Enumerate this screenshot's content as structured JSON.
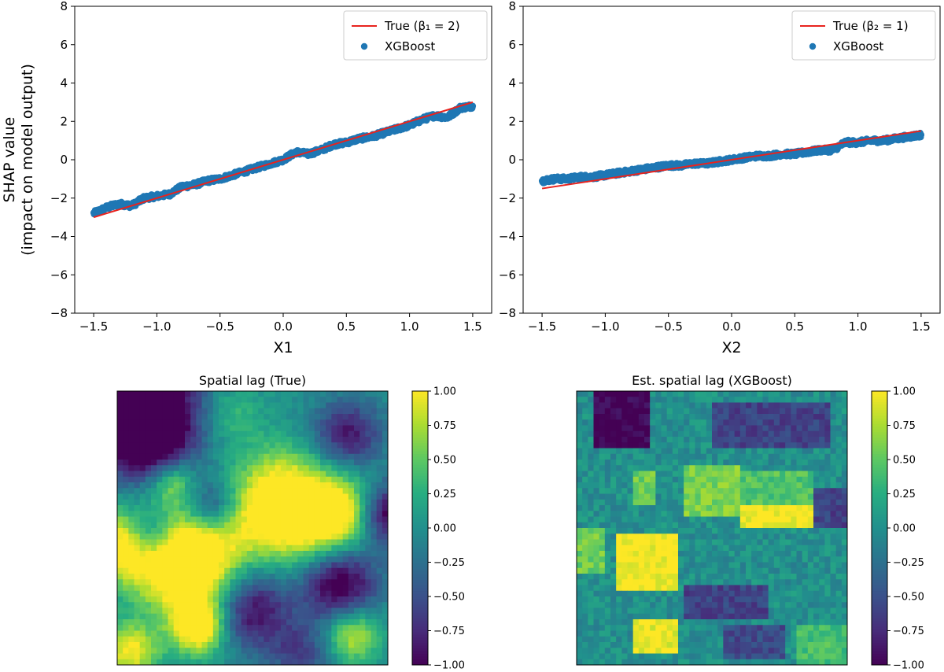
{
  "chart_data": [
    {
      "type": "scatter",
      "title": "",
      "xlabel": "X1",
      "ylabel": [
        "SHAP value",
        "(impact on model output)"
      ],
      "xlim": [
        -1.65,
        1.65
      ],
      "ylim": [
        -8,
        8
      ],
      "xticks": [
        -1.5,
        -1.0,
        -0.5,
        0.0,
        0.5,
        1.0,
        1.5
      ],
      "xtick_labels": [
        "−1.5",
        "−1.0",
        "−0.5",
        "0.0",
        "0.5",
        "1.0",
        "1.5"
      ],
      "yticks": [
        -8,
        -6,
        -4,
        -2,
        0,
        2,
        4,
        6,
        8
      ],
      "ytick_labels": [
        "−8",
        "−6",
        "−4",
        "−2",
        "0",
        "2",
        "4",
        "6",
        "8"
      ],
      "legend_position": "top-right",
      "series": [
        {
          "name": "True (β₁ = 2)",
          "kind": "line",
          "color": "#e8231e",
          "x": [
            -1.5,
            1.5
          ],
          "y": [
            -3.0,
            3.0
          ]
        },
        {
          "name": "XGBoost",
          "kind": "scatter",
          "color": "#1f77b4",
          "x": [
            -1.5,
            -1.4,
            -1.3,
            -1.2,
            -1.1,
            -1.0,
            -0.9,
            -0.8,
            -0.7,
            -0.6,
            -0.5,
            -0.4,
            -0.3,
            -0.2,
            -0.1,
            0.0,
            0.1,
            0.2,
            0.3,
            0.4,
            0.5,
            0.6,
            0.7,
            0.8,
            0.9,
            1.0,
            1.1,
            1.2,
            1.3,
            1.4,
            1.5
          ],
          "y": [
            -2.8,
            -2.5,
            -2.3,
            -2.4,
            -2.0,
            -1.9,
            -1.8,
            -1.4,
            -1.3,
            -1.1,
            -1.0,
            -0.8,
            -0.6,
            -0.4,
            -0.2,
            0.0,
            0.4,
            0.3,
            0.5,
            0.8,
            0.9,
            1.1,
            1.2,
            1.4,
            1.6,
            1.8,
            2.1,
            2.3,
            2.2,
            2.7,
            2.8
          ]
        }
      ]
    },
    {
      "type": "scatter",
      "title": "",
      "xlabel": "X2",
      "ylabel": "",
      "xlim": [
        -1.65,
        1.65
      ],
      "ylim": [
        -8,
        8
      ],
      "xticks": [
        -1.5,
        -1.0,
        -0.5,
        0.0,
        0.5,
        1.0,
        1.5
      ],
      "xtick_labels": [
        "−1.5",
        "−1.0",
        "−0.5",
        "0.0",
        "0.5",
        "1.0",
        "1.5"
      ],
      "yticks": [
        -8,
        -6,
        -4,
        -2,
        0,
        2,
        4,
        6,
        8
      ],
      "ytick_labels": [
        "−8",
        "−6",
        "−4",
        "−2",
        "0",
        "2",
        "4",
        "6",
        "8"
      ],
      "legend_position": "top-right",
      "series": [
        {
          "name": "True (β₂ = 1)",
          "kind": "line",
          "color": "#e8231e",
          "x": [
            -1.5,
            1.5
          ],
          "y": [
            -1.5,
            1.5
          ]
        },
        {
          "name": "XGBoost",
          "kind": "scatter",
          "color": "#1f77b4",
          "x": [
            -1.5,
            -1.4,
            -1.3,
            -1.2,
            -1.1,
            -1.0,
            -0.9,
            -0.8,
            -0.7,
            -0.6,
            -0.5,
            -0.4,
            -0.3,
            -0.2,
            -0.1,
            0.0,
            0.1,
            0.2,
            0.3,
            0.4,
            0.5,
            0.6,
            0.7,
            0.8,
            0.9,
            1.0,
            1.1,
            1.2,
            1.3,
            1.4,
            1.5
          ],
          "y": [
            -1.1,
            -1.0,
            -1.0,
            -0.9,
            -0.9,
            -0.8,
            -0.7,
            -0.6,
            -0.5,
            -0.4,
            -0.3,
            -0.3,
            -0.2,
            -0.2,
            -0.1,
            0.0,
            0.1,
            0.2,
            0.2,
            0.3,
            0.3,
            0.4,
            0.5,
            0.5,
            0.9,
            0.9,
            1.0,
            1.0,
            1.1,
            1.2,
            1.3
          ]
        }
      ]
    },
    {
      "type": "heatmap",
      "title": "Spatial lag (True)",
      "vmin": -1.0,
      "vmax": 1.0,
      "colormap": "viridis",
      "colorbar_ticks": [
        "1.00",
        "0.75",
        "0.50",
        "0.25",
        "0.00",
        "−0.25",
        "−0.50",
        "−0.75",
        "−1.00"
      ],
      "blobs": [
        {
          "cx": 0.08,
          "cy": 0.05,
          "r": 0.16,
          "v": -1.5
        },
        {
          "cx": 0.12,
          "cy": 0.18,
          "r": 0.1,
          "v": -0.8
        },
        {
          "cx": 0.42,
          "cy": 0.08,
          "r": 0.08,
          "v": 0.4
        },
        {
          "cx": 0.85,
          "cy": 0.16,
          "r": 0.09,
          "v": -0.9
        },
        {
          "cx": 0.62,
          "cy": 0.3,
          "r": 0.09,
          "v": 0.2
        },
        {
          "cx": 0.2,
          "cy": 0.33,
          "r": 0.06,
          "v": 0.7
        },
        {
          "cx": 0.6,
          "cy": 0.45,
          "r": 0.14,
          "v": 1.4
        },
        {
          "cx": 0.82,
          "cy": 0.45,
          "r": 0.1,
          "v": 1.1
        },
        {
          "cx": 0.35,
          "cy": 0.42,
          "r": 0.07,
          "v": -0.8
        },
        {
          "cx": 0.12,
          "cy": 0.53,
          "r": 0.07,
          "v": -0.9
        },
        {
          "cx": 1.0,
          "cy": 0.45,
          "r": 0.08,
          "v": -1.2
        },
        {
          "cx": 0.25,
          "cy": 0.62,
          "r": 0.13,
          "v": 1.7
        },
        {
          "cx": 0.02,
          "cy": 0.56,
          "r": 0.09,
          "v": 1.1
        },
        {
          "cx": 0.55,
          "cy": 0.63,
          "r": 0.08,
          "v": -0.2
        },
        {
          "cx": 0.82,
          "cy": 0.7,
          "r": 0.1,
          "v": -1.2
        },
        {
          "cx": 0.5,
          "cy": 0.8,
          "r": 0.1,
          "v": -1.0
        },
        {
          "cx": 0.3,
          "cy": 0.86,
          "r": 0.07,
          "v": 1.3
        },
        {
          "cx": 0.87,
          "cy": 0.89,
          "r": 0.07,
          "v": 0.9
        },
        {
          "cx": 0.05,
          "cy": 0.95,
          "r": 0.07,
          "v": 1.0
        },
        {
          "cx": 0.68,
          "cy": 0.96,
          "r": 0.08,
          "v": -0.6
        }
      ]
    },
    {
      "type": "heatmap",
      "title": "Est. spatial lag (XGBoost)",
      "vmin": -1.0,
      "vmax": 1.0,
      "colormap": "viridis",
      "colorbar_ticks": [
        "1.00",
        "0.75",
        "0.50",
        "0.25",
        "0.00",
        "−0.25",
        "−0.50",
        "−0.75",
        "−1.00"
      ],
      "rects": [
        {
          "x0": 0.06,
          "y0": 0.0,
          "x1": 0.27,
          "y1": 0.2,
          "v": -1.0
        },
        {
          "x0": 0.5,
          "y0": 0.04,
          "x1": 0.93,
          "y1": 0.2,
          "v": -0.6
        },
        {
          "x0": 0.4,
          "y0": 0.27,
          "x1": 0.6,
          "y1": 0.45,
          "v": 0.6
        },
        {
          "x0": 0.6,
          "y0": 0.3,
          "x1": 0.87,
          "y1": 0.44,
          "v": 0.45
        },
        {
          "x0": 0.2,
          "y0": 0.3,
          "x1": 0.3,
          "y1": 0.42,
          "v": 0.55
        },
        {
          "x0": 0.6,
          "y0": 0.41,
          "x1": 0.87,
          "y1": 0.51,
          "v": 1.0
        },
        {
          "x0": 0.87,
          "y0": 0.36,
          "x1": 1.0,
          "y1": 0.51,
          "v": -0.6
        },
        {
          "x0": 0.0,
          "y0": 0.51,
          "x1": 0.1,
          "y1": 0.67,
          "v": 0.55
        },
        {
          "x0": 0.15,
          "y0": 0.52,
          "x1": 0.37,
          "y1": 0.72,
          "v": 1.0
        },
        {
          "x0": 0.4,
          "y0": 0.71,
          "x1": 0.7,
          "y1": 0.84,
          "v": -0.6
        },
        {
          "x0": 0.2,
          "y0": 0.84,
          "x1": 0.37,
          "y1": 0.95,
          "v": 0.95
        },
        {
          "x0": 0.55,
          "y0": 0.86,
          "x1": 0.77,
          "y1": 0.97,
          "v": -0.55
        },
        {
          "x0": 0.82,
          "y0": 0.86,
          "x1": 1.0,
          "y1": 1.0,
          "v": 0.4
        }
      ]
    }
  ]
}
